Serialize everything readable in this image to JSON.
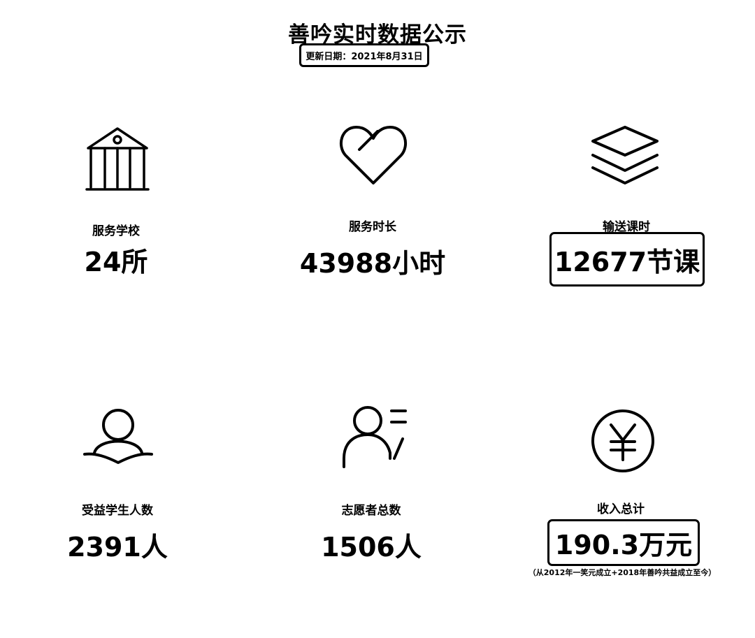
{
  "title": "善吟实时数据公示",
  "update_date": "更新日期：2021年8月31日",
  "stats": [
    {
      "icon": "bank-building-icon",
      "label": "服务学校",
      "value": "24所"
    },
    {
      "icon": "heart-icon",
      "label": "服务时长",
      "value": "43988小时"
    },
    {
      "icon": "layers-icon",
      "label": "输送课时",
      "value": "12677节课"
    },
    {
      "icon": "student-user-icon",
      "label": "受益学生人数",
      "value": "2391人"
    },
    {
      "icon": "volunteer-user-icon",
      "label": "志愿者总数",
      "value": "1506人"
    },
    {
      "icon": "yuan-coin-icon",
      "label": "收入总计",
      "value": "190.3万元"
    }
  ],
  "income_note": "（从2012年一笑元成立+2018年善吟共益成立至今）"
}
